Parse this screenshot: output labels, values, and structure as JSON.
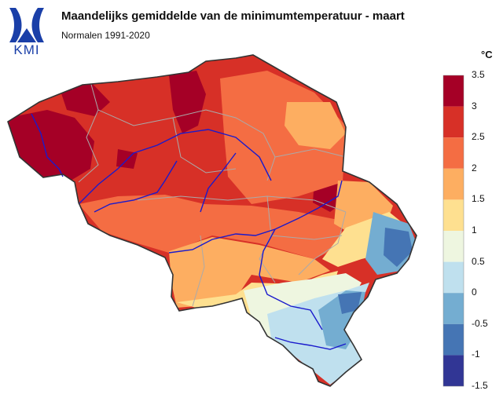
{
  "header": {
    "title": "Maandelijks gemiddelde van de minimumtemperatuur - maart",
    "subtitle": "Normalen 1991-2020",
    "logo_text": "KMI"
  },
  "legend": {
    "unit": "°C",
    "bins": [
      {
        "label": "3.5",
        "color": "#a50026"
      },
      {
        "label": "3",
        "color": "#d73027"
      },
      {
        "label": "2.5",
        "color": "#f46d43"
      },
      {
        "label": "2",
        "color": "#fdae61"
      },
      {
        "label": "1.5",
        "color": "#fee090"
      },
      {
        "label": "1",
        "color": "#eef6e0"
      },
      {
        "label": "0.5",
        "color": "#bfe0ee"
      },
      {
        "label": "0",
        "color": "#74add1"
      },
      {
        "label": "-0.5",
        "color": "#4575b4"
      },
      {
        "label": "-1",
        "color": "#313695"
      },
      {
        "label": "-1.5",
        "color": ""
      }
    ]
  },
  "colors": {
    "rivers": "#1a1acc",
    "borders": "#aaaaaa",
    "outline": "#333333"
  }
}
